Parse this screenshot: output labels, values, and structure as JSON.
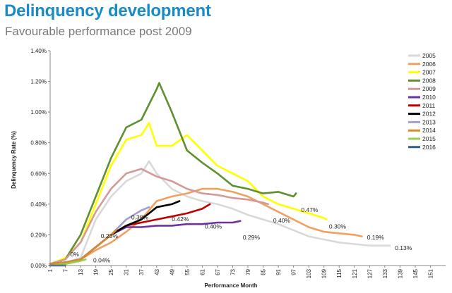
{
  "header": {
    "title": "Delinquency development",
    "subtitle": "Favourable performance post 2009"
  },
  "chart_data": {
    "type": "line",
    "xlabel": "Performance  Month",
    "ylabel": "Delinquency  Rate (%)",
    "xlim": [
      1,
      157
    ],
    "ylim": [
      0,
      1.4
    ],
    "x_ticks": [
      1,
      7,
      13,
      19,
      25,
      31,
      37,
      43,
      49,
      55,
      61,
      67,
      73,
      79,
      85,
      91,
      97,
      103,
      109,
      115,
      121,
      127,
      133,
      139,
      145,
      151
    ],
    "y_ticks": [
      0,
      0.2,
      0.4,
      0.6,
      0.8,
      1.0,
      1.2,
      1.4
    ],
    "y_tick_labels": [
      "0.00%",
      "0.20%",
      "0.40%",
      "0.60%",
      "0.80%",
      "1.00%",
      "1.20%",
      "1.40%"
    ],
    "legend_position": "right",
    "series": [
      {
        "name": "2005",
        "color": "#d9d9d9",
        "x": [
          1,
          7,
          13,
          19,
          25,
          31,
          37,
          40,
          43,
          49,
          55,
          61,
          67,
          73,
          79,
          85,
          91,
          97,
          103,
          109,
          115,
          121,
          127,
          133,
          135
        ],
        "values": [
          0.01,
          0.02,
          0.05,
          0.3,
          0.45,
          0.55,
          0.6,
          0.68,
          0.6,
          0.5,
          0.45,
          0.42,
          0.4,
          0.37,
          0.33,
          0.3,
          0.27,
          0.23,
          0.19,
          0.17,
          0.15,
          0.14,
          0.13,
          0.13,
          0.13
        ]
      },
      {
        "name": "2006",
        "color": "#f0a060",
        "x": [
          1,
          7,
          13,
          19,
          25,
          31,
          37,
          43,
          49,
          55,
          61,
          67,
          73,
          79,
          85,
          91,
          97,
          103,
          109,
          115,
          121,
          124
        ],
        "values": [
          0.01,
          0.02,
          0.04,
          0.1,
          0.15,
          0.22,
          0.3,
          0.42,
          0.45,
          0.47,
          0.5,
          0.5,
          0.48,
          0.45,
          0.4,
          0.35,
          0.3,
          0.25,
          0.22,
          0.21,
          0.2,
          0.19
        ]
      },
      {
        "name": "2007",
        "color": "#ffff00",
        "x": [
          1,
          7,
          13,
          19,
          25,
          31,
          37,
          40,
          43,
          49,
          55,
          61,
          67,
          73,
          79,
          85,
          91,
          97,
          103,
          109,
          110
        ],
        "values": [
          0.01,
          0.05,
          0.15,
          0.4,
          0.65,
          0.82,
          0.85,
          0.93,
          0.78,
          0.78,
          0.85,
          0.75,
          0.65,
          0.6,
          0.55,
          0.45,
          0.4,
          0.37,
          0.34,
          0.31,
          0.3
        ]
      },
      {
        "name": "2008",
        "color": "#5f8f2f",
        "x": [
          1,
          7,
          13,
          19,
          25,
          31,
          37,
          43,
          44,
          49,
          55,
          61,
          67,
          73,
          79,
          85,
          91,
          97,
          98
        ],
        "values": [
          0.01,
          0.04,
          0.2,
          0.45,
          0.7,
          0.9,
          0.95,
          1.15,
          1.19,
          1.0,
          0.75,
          0.67,
          0.6,
          0.52,
          0.5,
          0.47,
          0.48,
          0.45,
          0.47
        ]
      },
      {
        "name": "2009",
        "color": "#d49a9a",
        "x": [
          1,
          7,
          13,
          19,
          25,
          31,
          37,
          43,
          49,
          55,
          61,
          67,
          73,
          79,
          85,
          87
        ],
        "values": [
          0.01,
          0.04,
          0.15,
          0.35,
          0.5,
          0.6,
          0.63,
          0.58,
          0.55,
          0.5,
          0.47,
          0.46,
          0.44,
          0.43,
          0.41,
          0.4
        ]
      },
      {
        "name": "2010",
        "color": "#7030a0",
        "x": [
          1,
          7,
          13,
          19,
          25,
          31,
          37,
          43,
          49,
          55,
          61,
          67,
          73,
          76
        ],
        "values": [
          0.01,
          0.02,
          0.04,
          0.12,
          0.2,
          0.25,
          0.25,
          0.26,
          0.26,
          0.27,
          0.27,
          0.28,
          0.28,
          0.29
        ]
      },
      {
        "name": "2011",
        "color": "#c00000",
        "x": [
          1,
          7,
          13,
          19,
          25,
          31,
          37,
          43,
          49,
          55,
          61,
          64
        ],
        "values": [
          0.01,
          0.02,
          0.04,
          0.12,
          0.2,
          0.26,
          0.28,
          0.3,
          0.32,
          0.34,
          0.37,
          0.4
        ]
      },
      {
        "name": "2012",
        "color": "#000000",
        "x": [
          1,
          7,
          13,
          19,
          25,
          31,
          37,
          43,
          49,
          52
        ],
        "values": [
          0.01,
          0.02,
          0.04,
          0.12,
          0.2,
          0.26,
          0.3,
          0.38,
          0.4,
          0.42
        ]
      },
      {
        "name": "2013",
        "color": "#a89ccc",
        "x": [
          1,
          7,
          13,
          19,
          25,
          31,
          37,
          40
        ],
        "values": [
          0.01,
          0.02,
          0.04,
          0.12,
          0.2,
          0.3,
          0.36,
          0.38
        ]
      },
      {
        "name": "2014",
        "color": "#d98a2b",
        "x": [
          1,
          7,
          13,
          19,
          25,
          27
        ],
        "values": [
          0.01,
          0.02,
          0.04,
          0.12,
          0.2,
          0.23
        ]
      },
      {
        "name": "2015",
        "color": "#92d050",
        "x": [
          1,
          7,
          13,
          15
        ],
        "values": [
          0.0,
          0.01,
          0.03,
          0.04
        ]
      },
      {
        "name": "2016",
        "color": "#2e5f8a",
        "x": [
          1,
          4,
          7
        ],
        "values": [
          0.0,
          0.0,
          0.0
        ]
      }
    ],
    "annotations": [
      {
        "text": "0%",
        "x": 9,
        "y": 0.06
      },
      {
        "text": "0.04%",
        "x": 18,
        "y": 0.02
      },
      {
        "text": "0.23%",
        "x": 21,
        "y": 0.18
      },
      {
        "text": "0.38%",
        "x": 33,
        "y": 0.3
      },
      {
        "text": "0.42%",
        "x": 49,
        "y": 0.29
      },
      {
        "text": "0.40%",
        "x": 62,
        "y": 0.24
      },
      {
        "text": "0.29%",
        "x": 77,
        "y": 0.17
      },
      {
        "text": "0.40%",
        "x": 89,
        "y": 0.28
      },
      {
        "text": "0.47%",
        "x": 100,
        "y": 0.35
      },
      {
        "text": "0.30%",
        "x": 111,
        "y": 0.24
      },
      {
        "text": "0.19%",
        "x": 126,
        "y": 0.17
      },
      {
        "text": "0.13%",
        "x": 137,
        "y": 0.1
      }
    ]
  }
}
